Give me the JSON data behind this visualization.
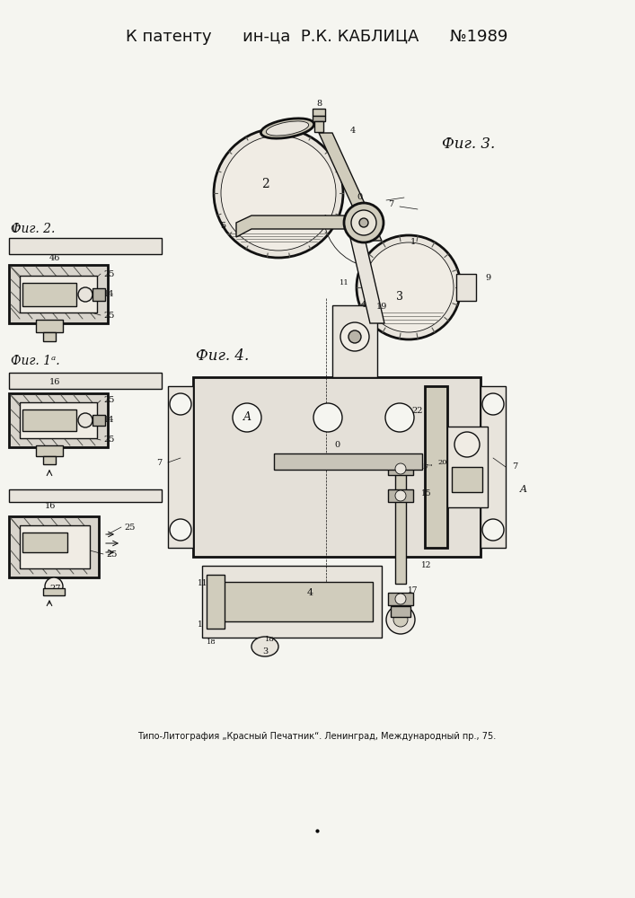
{
  "title_line": "К патенту      ин-ца  Р.К. КАБЛИЦА      №1989",
  "footer_line": "Типо-Литография „Красный Печатник“. Ленинград, Международный пр., 75.",
  "fig3_label": "Фиг. 3.",
  "fig4_label": "Фиг. 4.",
  "fig2_label": "Фиг. 2.",
  "fig1a_label": "Фиг. 1ᵃ.",
  "bg_color": "#f5f5f0",
  "line_color": "#111111",
  "hatch_color": "#444444",
  "fill_light": "#e8e4dc",
  "fill_dark": "#b8b4a8",
  "fill_mid": "#d0ccbc"
}
